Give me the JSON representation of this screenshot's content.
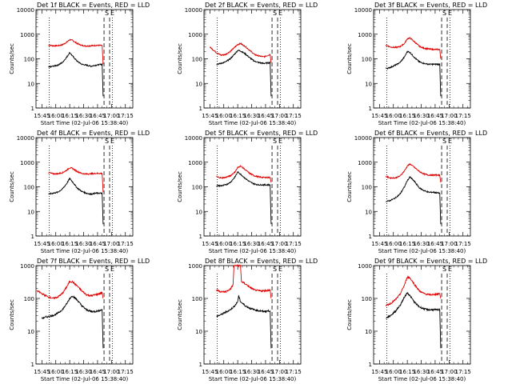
{
  "figure": {
    "ytick_labels": [
      "1",
      "10",
      "100",
      "1000",
      "10000"
    ],
    "xtick_labels": [
      "15:45",
      "16:00",
      "16:15",
      "16:30",
      "16:45",
      "17:00",
      "17:15"
    ],
    "xlabel": "Start Time (02-Jul-06 15:38:40)",
    "ylabel": "Counts/sec",
    "marker_labels": [
      "S",
      "E"
    ],
    "colors": {
      "events": "#000000",
      "lld": "#e00000",
      "axes": "#000000"
    }
  },
  "chart_data": [
    {
      "type": "line",
      "title": "Det 1f BLACK = Events, RED = LLD",
      "ylim": [
        1,
        10000
      ],
      "yscale": "log",
      "xlim": [
        "15:38:40",
        "17:23:00"
      ],
      "series": [
        {
          "x": [
            "15:52",
            "15:57",
            "16:02",
            "16:07",
            "16:12",
            "16:15",
            "16:18",
            "16:23",
            "16:28",
            "16:33",
            "16:38",
            "16:43",
            "16:50",
            "16:51"
          ],
          "values": [
            360,
            340,
            340,
            370,
            480,
            600,
            560,
            420,
            350,
            330,
            340,
            350,
            350,
            60
          ]
        },
        {
          "x": [
            "15:52",
            "15:57",
            "16:02",
            "16:07",
            "16:12",
            "16:15",
            "16:18",
            "16:23",
            "16:28",
            "16:33",
            "16:38",
            "16:43",
            "16:50",
            "16:51"
          ],
          "values": [
            45,
            50,
            55,
            70,
            120,
            180,
            130,
            80,
            60,
            55,
            50,
            55,
            60,
            3
          ]
        }
      ]
    },
    {
      "type": "line",
      "title": "Det 2f BLACK = Events, RED = LLD",
      "ylim": [
        1,
        10000
      ],
      "yscale": "log",
      "xlim": [
        "15:38:40",
        "17:23:00"
      ],
      "series": [
        {
          "x": [
            "15:45",
            "15:52",
            "15:57",
            "16:02",
            "16:07",
            "16:12",
            "16:15",
            "16:18",
            "16:23",
            "16:28",
            "16:33",
            "16:38",
            "16:43",
            "16:50",
            "16:51"
          ],
          "values": [
            300,
            180,
            140,
            150,
            200,
            300,
            380,
            420,
            320,
            220,
            150,
            130,
            120,
            150,
            70
          ]
        },
        {
          "x": [
            "15:52",
            "15:57",
            "16:02",
            "16:07",
            "16:12",
            "16:15",
            "16:18",
            "16:23",
            "16:28",
            "16:33",
            "16:38",
            "16:43",
            "16:50",
            "16:51"
          ],
          "values": [
            60,
            65,
            75,
            100,
            160,
            220,
            210,
            160,
            110,
            80,
            70,
            65,
            70,
            3
          ]
        }
      ]
    },
    {
      "type": "line",
      "title": "Det 3f BLACK = Events, RED = LLD",
      "ylim": [
        1,
        10000
      ],
      "yscale": "log",
      "xlim": [
        "15:38:40",
        "17:23:00"
      ],
      "series": [
        {
          "x": [
            "15:52",
            "15:57",
            "16:02",
            "16:07",
            "16:12",
            "16:15",
            "16:18",
            "16:23",
            "16:28",
            "16:33",
            "16:38",
            "16:43",
            "16:50",
            "16:51"
          ],
          "values": [
            360,
            300,
            290,
            310,
            420,
            650,
            700,
            480,
            320,
            270,
            250,
            240,
            240,
            100
          ]
        },
        {
          "x": [
            "15:52",
            "15:57",
            "16:02",
            "16:07",
            "16:12",
            "16:15",
            "16:18",
            "16:23",
            "16:28",
            "16:33",
            "16:38",
            "16:43",
            "16:50",
            "16:51"
          ],
          "values": [
            40,
            45,
            55,
            70,
            120,
            200,
            180,
            110,
            75,
            65,
            60,
            60,
            60,
            3
          ]
        }
      ]
    },
    {
      "type": "line",
      "title": "Det 4f BLACK = Events, RED = LLD",
      "ylim": [
        1,
        10000
      ],
      "yscale": "log",
      "xlim": [
        "15:38:40",
        "17:23:00"
      ],
      "series": [
        {
          "x": [
            "15:52",
            "15:57",
            "16:02",
            "16:07",
            "16:12",
            "16:15",
            "16:18",
            "16:23",
            "16:28",
            "16:33",
            "16:38",
            "16:43",
            "16:50",
            "16:51"
          ],
          "values": [
            380,
            340,
            340,
            370,
            480,
            600,
            560,
            420,
            350,
            330,
            340,
            350,
            350,
            60
          ]
        },
        {
          "x": [
            "15:52",
            "15:57",
            "16:02",
            "16:07",
            "16:12",
            "16:15",
            "16:18",
            "16:23",
            "16:28",
            "16:33",
            "16:38",
            "16:43",
            "16:50",
            "16:51"
          ],
          "values": [
            50,
            55,
            60,
            80,
            140,
            220,
            160,
            90,
            65,
            55,
            50,
            55,
            55,
            3
          ]
        }
      ]
    },
    {
      "type": "line",
      "title": "Det 5f BLACK = Events, RED = LLD",
      "ylim": [
        1,
        10000
      ],
      "yscale": "log",
      "xlim": [
        "15:38:40",
        "17:23:00"
      ],
      "series": [
        {
          "x": [
            "15:52",
            "15:57",
            "16:02",
            "16:07",
            "16:12",
            "16:15",
            "16:18",
            "16:23",
            "16:28",
            "16:33",
            "16:38",
            "16:43",
            "16:50",
            "16:51"
          ],
          "values": [
            260,
            230,
            240,
            280,
            400,
            600,
            700,
            500,
            350,
            280,
            250,
            240,
            240,
            150
          ]
        },
        {
          "x": [
            "15:52",
            "15:57",
            "16:02",
            "16:07",
            "16:12",
            "16:15",
            "16:18",
            "16:23",
            "16:28",
            "16:33",
            "16:38",
            "16:43",
            "16:50",
            "16:51"
          ],
          "values": [
            110,
            110,
            120,
            150,
            250,
            400,
            330,
            220,
            160,
            130,
            120,
            120,
            120,
            3
          ]
        }
      ]
    },
    {
      "type": "line",
      "title": "Det 6f BLACK = Events, RED = LLD",
      "ylim": [
        1,
        10000
      ],
      "yscale": "log",
      "xlim": [
        "15:38:40",
        "17:23:00"
      ],
      "series": [
        {
          "x": [
            "15:52",
            "15:57",
            "16:02",
            "16:07",
            "16:12",
            "16:15",
            "16:18",
            "16:23",
            "16:28",
            "16:33",
            "16:38",
            "16:43",
            "16:50",
            "16:51"
          ],
          "values": [
            260,
            230,
            230,
            270,
            450,
            700,
            850,
            600,
            420,
            330,
            300,
            300,
            300,
            150
          ]
        },
        {
          "x": [
            "15:52",
            "15:57",
            "16:02",
            "16:07",
            "16:12",
            "16:15",
            "16:18",
            "16:23",
            "16:28",
            "16:33",
            "16:38",
            "16:43",
            "16:50",
            "16:51"
          ],
          "values": [
            25,
            28,
            35,
            50,
            100,
            180,
            250,
            160,
            90,
            70,
            60,
            60,
            55,
            3
          ]
        }
      ]
    },
    {
      "type": "line",
      "title": "Det 7f BLACK = Events, RED = LLD",
      "ylim": [
        1,
        1000
      ],
      "yscale": "log",
      "xlim": [
        "15:38:40",
        "17:23:00"
      ],
      "series": [
        {
          "x": [
            "15:40",
            "15:45",
            "15:52",
            "15:57",
            "16:02",
            "16:07",
            "16:12",
            "16:15",
            "16:18",
            "16:23",
            "16:28",
            "16:33",
            "16:38",
            "16:43",
            "16:50",
            "16:51"
          ],
          "values": [
            170,
            140,
            110,
            100,
            110,
            140,
            230,
            330,
            320,
            240,
            170,
            130,
            120,
            130,
            150,
            100
          ]
        },
        {
          "x": [
            "15:45",
            "15:52",
            "15:57",
            "16:02",
            "16:07",
            "16:12",
            "16:15",
            "16:18",
            "16:23",
            "16:28",
            "16:33",
            "16:38",
            "16:43",
            "16:50",
            "16:51"
          ],
          "values": [
            25,
            28,
            30,
            35,
            45,
            70,
            100,
            120,
            90,
            60,
            45,
            40,
            40,
            45,
            3
          ]
        }
      ]
    },
    {
      "type": "line",
      "title": "Det 8f BLACK = Events, RED = LLD",
      "ylim": [
        1,
        1000
      ],
      "yscale": "log",
      "xlim": [
        "15:38:40",
        "17:23:00"
      ],
      "series": [
        {
          "x": [
            "15:52",
            "15:57",
            "16:02",
            "16:07",
            "16:10",
            "16:11",
            "16:12",
            "16:14",
            "16:16",
            "16:18",
            "16:19",
            "16:23",
            "16:28",
            "16:33",
            "16:38",
            "16:43",
            "16:50",
            "16:51"
          ],
          "values": [
            180,
            160,
            160,
            190,
            260,
            1000,
            1000,
            1000,
            1000,
            1000,
            330,
            280,
            220,
            180,
            170,
            170,
            180,
            100
          ]
        },
        {
          "x": [
            "15:52",
            "15:57",
            "16:02",
            "16:07",
            "16:12",
            "16:15",
            "16:16",
            "16:18",
            "16:23",
            "16:28",
            "16:33",
            "16:38",
            "16:43",
            "16:50",
            "16:51"
          ],
          "values": [
            28,
            32,
            38,
            45,
            60,
            80,
            120,
            80,
            60,
            50,
            45,
            42,
            40,
            42,
            3
          ]
        }
      ]
    },
    {
      "type": "line",
      "title": "Det 9f BLACK = Events, RED = LLD",
      "ylim": [
        1,
        1000
      ],
      "yscale": "log",
      "xlim": [
        "15:38:40",
        "17:23:00"
      ],
      "series": [
        {
          "x": [
            "15:52",
            "15:57",
            "16:02",
            "16:07",
            "16:12",
            "16:15",
            "16:18",
            "16:23",
            "16:28",
            "16:33",
            "16:38",
            "16:43",
            "16:50",
            "16:51"
          ],
          "values": [
            60,
            70,
            90,
            130,
            260,
            450,
            420,
            260,
            170,
            140,
            130,
            130,
            140,
            100
          ]
        },
        {
          "x": [
            "15:52",
            "15:57",
            "16:02",
            "16:07",
            "16:12",
            "16:15",
            "16:18",
            "16:23",
            "16:28",
            "16:33",
            "16:38",
            "16:43",
            "16:50",
            "16:51"
          ],
          "values": [
            25,
            30,
            40,
            60,
            110,
            150,
            120,
            75,
            55,
            48,
            45,
            45,
            45,
            3
          ]
        }
      ]
    }
  ]
}
